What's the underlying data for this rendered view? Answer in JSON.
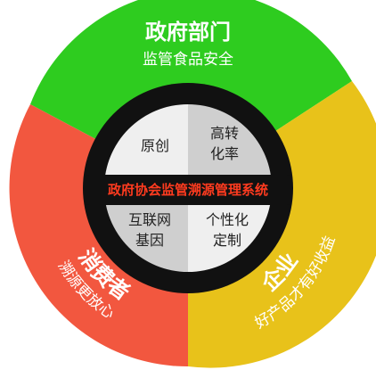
{
  "diagram": {
    "segments": {
      "government": {
        "title": "政府部门",
        "subtitle": "监管食品安全",
        "color": "#2ecc1f"
      },
      "enterprise": {
        "title": "企业",
        "subtitle": "好产品才有好收益",
        "color": "#e8c21a"
      },
      "consumer": {
        "title": "消费者",
        "subtitle": "溯源更放心",
        "color": "#f2573f"
      }
    },
    "quadrants": {
      "top_left": {
        "line1": "原创"
      },
      "top_right": {
        "line1": "高转",
        "line2": "化率"
      },
      "bottom_left": {
        "line1": "互联网",
        "line2": "基因"
      },
      "bottom_right": {
        "line1": "个性化",
        "line2": "定制"
      }
    },
    "center_label": "政府协会监管溯源管理系统",
    "colors": {
      "ring": "#111111",
      "quad_light": "#efefef",
      "quad_grey": "#cfcfcf",
      "center_text": "#ff3b1f"
    }
  }
}
